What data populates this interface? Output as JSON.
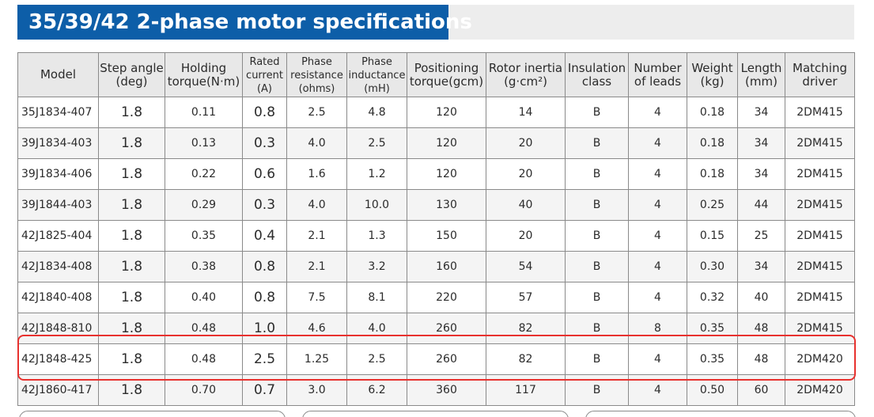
{
  "title": "35/39/42 2-phase motor specifications",
  "columns": [
    {
      "line1": "Model",
      "line2": ""
    },
    {
      "line1": "Step angle",
      "line2": "(deg)"
    },
    {
      "line1": "Holding",
      "line2": "torque(N·m)"
    },
    {
      "line1": "Rated",
      "line2": "current",
      "line3": "(A)"
    },
    {
      "line1": "Phase",
      "line2": "resistance",
      "line3": "(ohms)"
    },
    {
      "line1": "Phase",
      "line2": "inductance",
      "line3": "(mH)"
    },
    {
      "line1": "Positioning",
      "line2": "torque(gcm)"
    },
    {
      "line1": "Rotor inertia",
      "line2": "(g·cm²)"
    },
    {
      "line1": "Insulation",
      "line2": "class"
    },
    {
      "line1": "Number",
      "line2": "of leads"
    },
    {
      "line1": "Weight",
      "line2": "(kg)"
    },
    {
      "line1": "Length",
      "line2": "(mm)"
    },
    {
      "line1": "Matching",
      "line2": "driver"
    }
  ],
  "rows": [
    [
      "35J1834-407",
      "1.8",
      "0.11",
      "0.8",
      "2.5",
      "4.8",
      "120",
      "14",
      "B",
      "4",
      "0.18",
      "34",
      "2DM415"
    ],
    [
      "39J1834-403",
      "1.8",
      "0.13",
      "0.3",
      "4.0",
      "2.5",
      "120",
      "20",
      "B",
      "4",
      "0.18",
      "34",
      "2DM415"
    ],
    [
      "39J1834-406",
      "1.8",
      "0.22",
      "0.6",
      "1.6",
      "1.2",
      "120",
      "20",
      "B",
      "4",
      "0.18",
      "34",
      "2DM415"
    ],
    [
      "39J1844-403",
      "1.8",
      "0.29",
      "0.3",
      "4.0",
      "10.0",
      "130",
      "40",
      "B",
      "4",
      "0.25",
      "44",
      "2DM415"
    ],
    [
      "42J1825-404",
      "1.8",
      "0.35",
      "0.4",
      "2.1",
      "1.3",
      "150",
      "20",
      "B",
      "4",
      "0.15",
      "25",
      "2DM415"
    ],
    [
      "42J1834-408",
      "1.8",
      "0.38",
      "0.8",
      "2.1",
      "3.2",
      "160",
      "54",
      "B",
      "4",
      "0.30",
      "34",
      "2DM415"
    ],
    [
      "42J1840-408",
      "1.8",
      "0.40",
      "0.8",
      "7.5",
      "8.1",
      "220",
      "57",
      "B",
      "4",
      "0.32",
      "40",
      "2DM415"
    ],
    [
      "42J1848-810",
      "1.8",
      "0.48",
      "1.0",
      "4.6",
      "4.0",
      "260",
      "82",
      "B",
      "8",
      "0.35",
      "48",
      "2DM415"
    ],
    [
      "42J1848-425",
      "1.8",
      "0.48",
      "2.5",
      "1.25",
      "2.5",
      "260",
      "82",
      "B",
      "4",
      "0.35",
      "48",
      "2DM420"
    ],
    [
      "42J1860-417",
      "1.8",
      "0.70",
      "0.7",
      "3.0",
      "6.2",
      "360",
      "117",
      "B",
      "4",
      "0.50",
      "60",
      "2DM420"
    ]
  ],
  "highlighted_row_model": "42J1848-425",
  "colors": {
    "title_bg": "#0d5ea8",
    "title_text": "#ffffff",
    "header_bg": "#e8e8e8",
    "highlight_border": "#e8312e"
  }
}
